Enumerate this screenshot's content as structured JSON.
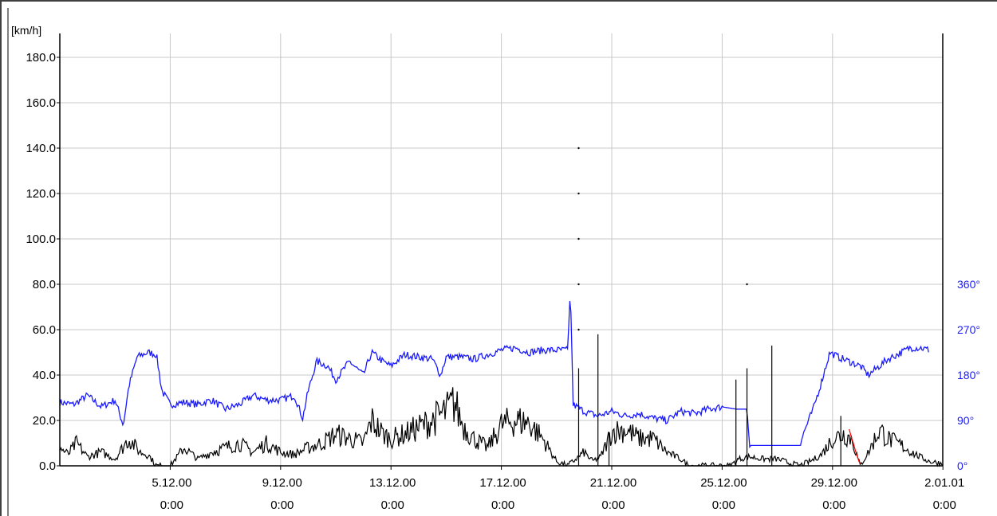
{
  "chart_data": {
    "type": "line",
    "ylabel": "[km/h]",
    "ylim": [
      0,
      180
    ],
    "y_ticks": [
      "0.0",
      "20.0",
      "40.0",
      "60.0",
      "80.0",
      "100.0",
      "120.0",
      "140.0",
      "160.0",
      "180.0"
    ],
    "right_axis": {
      "ticks": [
        "0°",
        "90°",
        "180°",
        "270°",
        "360°"
      ],
      "values": [
        0,
        90,
        180,
        270,
        360
      ],
      "color": "#1a1aff"
    },
    "xlim": [
      "2000-12-01 0:00",
      "2001-01-02 0:00"
    ],
    "x_ticks": [
      {
        "date": "5.12.00",
        "time": "0:00"
      },
      {
        "date": "9.12.00",
        "time": "0:00"
      },
      {
        "date": "13.12.00",
        "time": "0:00"
      },
      {
        "date": "17.12.00",
        "time": "0:00"
      },
      {
        "date": "21.12.00",
        "time": "0:00"
      },
      {
        "date": "25.12.00",
        "time": "0:00"
      },
      {
        "date": "29.12.00",
        "time": "0:00"
      },
      {
        "date": "2.01.01",
        "time": "0:00"
      }
    ],
    "grid": true,
    "series": [
      {
        "color": "#1a1aff",
        "axis": "right",
        "points": [
          [
            0,
            28
          ],
          [
            0.5,
            27
          ],
          [
            1,
            31
          ],
          [
            1.5,
            26
          ],
          [
            2,
            29
          ],
          [
            2.3,
            18
          ],
          [
            2.5,
            35
          ],
          [
            2.8,
            48
          ],
          [
            3.2,
            50
          ],
          [
            3.5,
            49
          ],
          [
            3.7,
            33
          ],
          [
            4,
            27
          ],
          [
            4.5,
            28
          ],
          [
            5,
            27
          ],
          [
            5.5,
            29
          ],
          [
            6,
            25
          ],
          [
            6.5,
            27
          ],
          [
            7,
            31
          ],
          [
            7.5,
            29
          ],
          [
            8,
            29
          ],
          [
            8.5,
            31
          ],
          [
            8.8,
            21
          ],
          [
            9,
            33
          ],
          [
            9.3,
            46
          ],
          [
            9.7,
            44
          ],
          [
            10,
            38
          ],
          [
            10.5,
            46
          ],
          [
            11,
            40
          ],
          [
            11.3,
            50
          ],
          [
            11.7,
            46
          ],
          [
            12,
            44
          ],
          [
            12.5,
            49
          ],
          [
            13,
            48
          ],
          [
            13.5,
            47
          ],
          [
            13.8,
            40
          ],
          [
            14,
            48
          ],
          [
            14.5,
            48
          ],
          [
            15,
            47
          ],
          [
            15.5,
            49
          ],
          [
            16,
            51
          ],
          [
            16.5,
            52
          ],
          [
            17,
            50
          ],
          [
            17.5,
            51
          ],
          [
            18,
            51
          ],
          [
            18.4,
            51
          ],
          [
            18.5,
            78
          ],
          [
            18.6,
            27
          ],
          [
            19,
            24
          ],
          [
            19.5,
            22
          ],
          [
            20,
            24
          ],
          [
            20.5,
            22
          ],
          [
            21,
            23
          ],
          [
            21.5,
            21
          ],
          [
            22,
            20
          ],
          [
            22.5,
            24
          ],
          [
            23,
            23
          ],
          [
            23.5,
            25
          ],
          [
            24,
            26
          ],
          [
            24.5,
            25
          ],
          [
            24.9,
            25
          ],
          [
            25,
            9
          ],
          [
            25.5,
            9
          ],
          [
            26,
            9
          ],
          [
            26.5,
            9
          ],
          [
            26.8,
            9
          ],
          [
            27,
            16
          ],
          [
            27.3,
            25
          ],
          [
            27.6,
            37
          ],
          [
            27.9,
            50
          ],
          [
            28.2,
            48
          ],
          [
            28.6,
            46
          ],
          [
            29,
            44
          ],
          [
            29.3,
            40
          ],
          [
            29.7,
            44
          ],
          [
            30,
            47
          ],
          [
            30.5,
            50
          ],
          [
            30.8,
            52
          ],
          [
            31.2,
            52
          ],
          [
            31.5,
            51
          ]
        ]
      },
      {
        "color": "#000000",
        "axis": "left",
        "points": [
          [
            0,
            8
          ],
          [
            0.3,
            5
          ],
          [
            0.6,
            10
          ],
          [
            1,
            4
          ],
          [
            1.5,
            6
          ],
          [
            2,
            3
          ],
          [
            2.5,
            12
          ],
          [
            2.9,
            6
          ],
          [
            3.2,
            5
          ],
          [
            3.5,
            0
          ],
          [
            4,
            0
          ],
          [
            4.5,
            8
          ],
          [
            5,
            3
          ],
          [
            5.5,
            6
          ],
          [
            6,
            8
          ],
          [
            6.5,
            10
          ],
          [
            7,
            6
          ],
          [
            7.5,
            10
          ],
          [
            8,
            6
          ],
          [
            8.5,
            5
          ],
          [
            9,
            8
          ],
          [
            9.5,
            10
          ],
          [
            10,
            14
          ],
          [
            10.5,
            12
          ],
          [
            11,
            10
          ],
          [
            11.3,
            20
          ],
          [
            11.7,
            14
          ],
          [
            12,
            12
          ],
          [
            12.5,
            14
          ],
          [
            13,
            17
          ],
          [
            13.5,
            20
          ],
          [
            14,
            24
          ],
          [
            14.3,
            28
          ],
          [
            14.6,
            18
          ],
          [
            15,
            12
          ],
          [
            15.5,
            8
          ],
          [
            16,
            18
          ],
          [
            16.5,
            20
          ],
          [
            17,
            19
          ],
          [
            17.5,
            12
          ],
          [
            18,
            2
          ],
          [
            18.4,
            0
          ],
          [
            18.7,
            3
          ],
          [
            19,
            6
          ],
          [
            19.3,
            2
          ],
          [
            19.6,
            4
          ],
          [
            20,
            15
          ],
          [
            20.5,
            16
          ],
          [
            21,
            12
          ],
          [
            21.5,
            12
          ],
          [
            22,
            6
          ],
          [
            22.5,
            3
          ],
          [
            22.8,
            0
          ],
          [
            23.5,
            0
          ],
          [
            24.3,
            0
          ],
          [
            24.6,
            3
          ],
          [
            25,
            4
          ],
          [
            25.5,
            3
          ],
          [
            26,
            3
          ],
          [
            26.5,
            1
          ],
          [
            26.8,
            0
          ],
          [
            27.2,
            2
          ],
          [
            27.6,
            5
          ],
          [
            28,
            12
          ],
          [
            28.4,
            14
          ],
          [
            28.7,
            12
          ],
          [
            29,
            0
          ],
          [
            29.3,
            6
          ],
          [
            29.7,
            16
          ],
          [
            30,
            12
          ],
          [
            30.5,
            9
          ],
          [
            31,
            5
          ],
          [
            31.5,
            2
          ],
          [
            32,
            1
          ]
        ],
        "spikes": [
          [
            18.8,
            43
          ],
          [
            19.5,
            58
          ],
          [
            19.9,
            15
          ],
          [
            24.5,
            38
          ],
          [
            24.9,
            43
          ],
          [
            25.8,
            53
          ],
          [
            28.3,
            22
          ]
        ]
      },
      {
        "color": "#ff0000",
        "axis": "left",
        "points": [
          [
            28.6,
            16
          ],
          [
            28.8,
            8
          ],
          [
            28.95,
            2
          ],
          [
            29.05,
            0
          ]
        ]
      }
    ]
  }
}
